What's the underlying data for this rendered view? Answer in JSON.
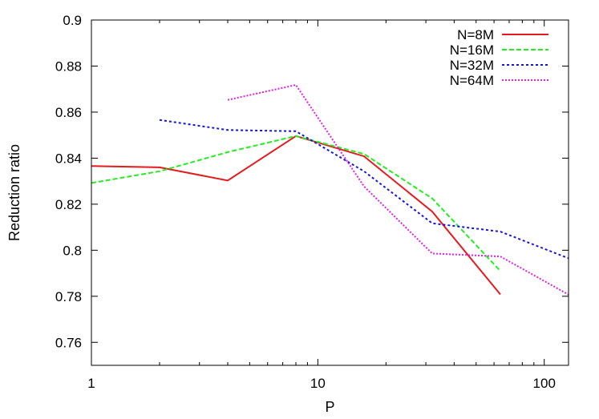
{
  "chart_data": {
    "type": "line",
    "xlabel": "P",
    "ylabel": "Reduction ratio",
    "xscale": "log",
    "xlim": [
      1,
      128
    ],
    "ylim": [
      0.75,
      0.9
    ],
    "grid": false,
    "legend_position": "top-right",
    "x_ticks": [
      1,
      10,
      100
    ],
    "x_tick_labels": [
      "1",
      "10",
      "100"
    ],
    "y_ticks": [
      0.76,
      0.78,
      0.8,
      0.82,
      0.84,
      0.86,
      0.88,
      0.9
    ],
    "y_tick_labels": [
      "0.76",
      "0.78",
      "0.8",
      "0.82",
      "0.84",
      "0.86",
      "0.88",
      "0.9"
    ],
    "series": [
      {
        "name": "N=8M",
        "color": "#e41a1c",
        "style": "solid",
        "x": [
          1,
          2,
          4,
          8,
          16,
          32,
          64
        ],
        "y": [
          0.8366,
          0.836,
          0.8303,
          0.8496,
          0.8408,
          0.8168,
          0.7808
        ]
      },
      {
        "name": "N=16M",
        "color": "#22ee22",
        "style": "dashed",
        "x": [
          1,
          2,
          4,
          8,
          16,
          32,
          64
        ],
        "y": [
          0.8292,
          0.8343,
          0.8426,
          0.8496,
          0.8418,
          0.8225,
          0.791
        ]
      },
      {
        "name": "N=32M",
        "color": "#1515e0",
        "style": "dotted",
        "x": [
          2,
          4,
          8,
          16,
          32,
          64,
          128
        ],
        "y": [
          0.8566,
          0.8522,
          0.8517,
          0.8343,
          0.8117,
          0.8081,
          0.7965
        ]
      },
      {
        "name": "N=64M",
        "color": "#e020e0",
        "style": "fine-dotted",
        "x": [
          4,
          8,
          16,
          32,
          64,
          128
        ],
        "y": [
          0.8653,
          0.8718,
          0.8277,
          0.7986,
          0.7973,
          0.7807
        ]
      }
    ]
  }
}
